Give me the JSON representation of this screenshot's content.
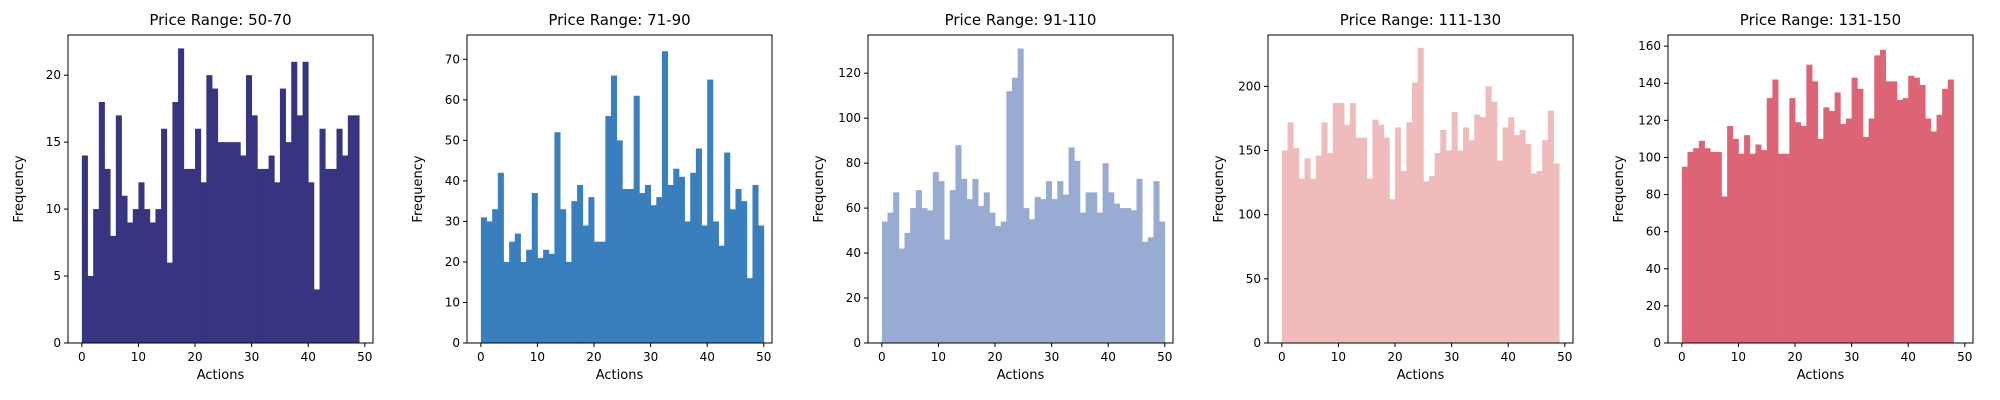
{
  "chart_data": [
    {
      "type": "bar",
      "title": "Price Range: 50-70",
      "xlabel": "Actions",
      "ylabel": "Frequency",
      "color": "#373580",
      "xlim": [
        -2.45,
        51.45
      ],
      "ylim": [
        0,
        23
      ],
      "xticks": [
        0,
        10,
        20,
        30,
        40,
        50
      ],
      "yticks": [
        0,
        5,
        10,
        15,
        20
      ],
      "values": [
        14,
        5,
        10,
        18,
        13,
        8,
        17,
        11,
        9,
        10,
        12,
        10,
        9,
        10,
        16,
        6,
        18,
        22,
        13,
        13,
        16,
        12,
        20,
        19,
        15,
        15,
        15,
        15,
        14,
        20,
        17,
        13,
        13,
        14,
        12,
        19,
        15,
        21,
        17,
        21,
        12,
        4,
        16,
        13,
        13,
        16,
        14,
        17,
        17
      ]
    },
    {
      "type": "bar",
      "title": "Price Range: 71-90",
      "xlabel": "Actions",
      "ylabel": "Frequency",
      "color": "#3a7fbd",
      "xlim": [
        -2.45,
        51.45
      ],
      "ylim": [
        0,
        76
      ],
      "xticks": [
        0,
        10,
        20,
        30,
        40,
        50
      ],
      "yticks": [
        0,
        10,
        20,
        30,
        40,
        50,
        60,
        70
      ],
      "values": [
        31,
        30,
        33,
        42,
        20,
        25,
        27,
        20,
        23,
        37,
        21,
        23,
        22,
        52,
        33,
        20,
        35,
        39,
        29,
        36,
        25,
        25,
        56,
        66,
        50,
        38,
        38,
        61,
        37,
        39,
        34,
        36,
        72,
        39,
        43,
        41,
        30,
        42,
        48,
        29,
        65,
        30,
        24,
        47,
        33,
        38,
        35,
        16,
        39,
        29
      ]
    },
    {
      "type": "bar",
      "title": "Price Range: 91-110",
      "xlabel": "Actions",
      "ylabel": "Frequency",
      "color": "#98abd3",
      "xlim": [
        -2.45,
        51.45
      ],
      "ylim": [
        0,
        137
      ],
      "xticks": [
        0,
        10,
        20,
        30,
        40,
        50
      ],
      "yticks": [
        0,
        20,
        40,
        60,
        80,
        100,
        120
      ],
      "values": [
        54,
        58,
        67,
        42,
        49,
        60,
        68,
        60,
        59,
        76,
        72,
        46,
        68,
        88,
        73,
        64,
        73,
        61,
        67,
        58,
        52,
        54,
        112,
        118,
        131,
        60,
        55,
        65,
        64,
        72,
        64,
        72,
        66,
        87,
        81,
        58,
        67,
        67,
        58,
        80,
        67,
        62,
        60,
        60,
        59,
        73,
        45,
        47,
        72,
        54
      ]
    },
    {
      "type": "bar",
      "title": "Price Range: 111-130",
      "xlabel": "Actions",
      "ylabel": "Frequency",
      "color": "#f0bbbb",
      "xlim": [
        -2.45,
        51.45
      ],
      "ylim": [
        0,
        240
      ],
      "xticks": [
        0,
        10,
        20,
        30,
        40,
        50
      ],
      "yticks": [
        0,
        50,
        100,
        150,
        200
      ],
      "values": [
        150,
        172,
        152,
        128,
        144,
        128,
        146,
        172,
        148,
        187,
        187,
        170,
        187,
        160,
        160,
        128,
        174,
        170,
        160,
        112,
        168,
        134,
        172,
        203,
        230,
        126,
        130,
        148,
        166,
        150,
        180,
        150,
        168,
        158,
        178,
        176,
        200,
        188,
        142,
        168,
        176,
        162,
        166,
        155,
        132,
        134,
        158,
        181,
        140
      ]
    },
    {
      "type": "bar",
      "title": "Price Range: 131-150",
      "xlabel": "Actions",
      "ylabel": "Frequency",
      "color": "#dd6475",
      "xlim": [
        -2.45,
        51.45
      ],
      "ylim": [
        0,
        166
      ],
      "xticks": [
        0,
        10,
        20,
        30,
        40,
        50
      ],
      "yticks": [
        0,
        20,
        40,
        60,
        80,
        100,
        120,
        140,
        160
      ],
      "values": [
        95,
        103,
        105,
        109,
        105,
        103,
        103,
        79,
        117,
        110,
        102,
        112,
        102,
        107,
        104,
        132,
        142,
        102,
        102,
        132,
        119,
        117,
        150,
        141,
        110,
        127,
        125,
        135,
        118,
        121,
        143,
        137,
        111,
        121,
        155,
        158,
        141,
        141,
        131,
        132,
        144,
        143,
        139,
        121,
        114,
        123,
        137,
        142
      ]
    }
  ]
}
